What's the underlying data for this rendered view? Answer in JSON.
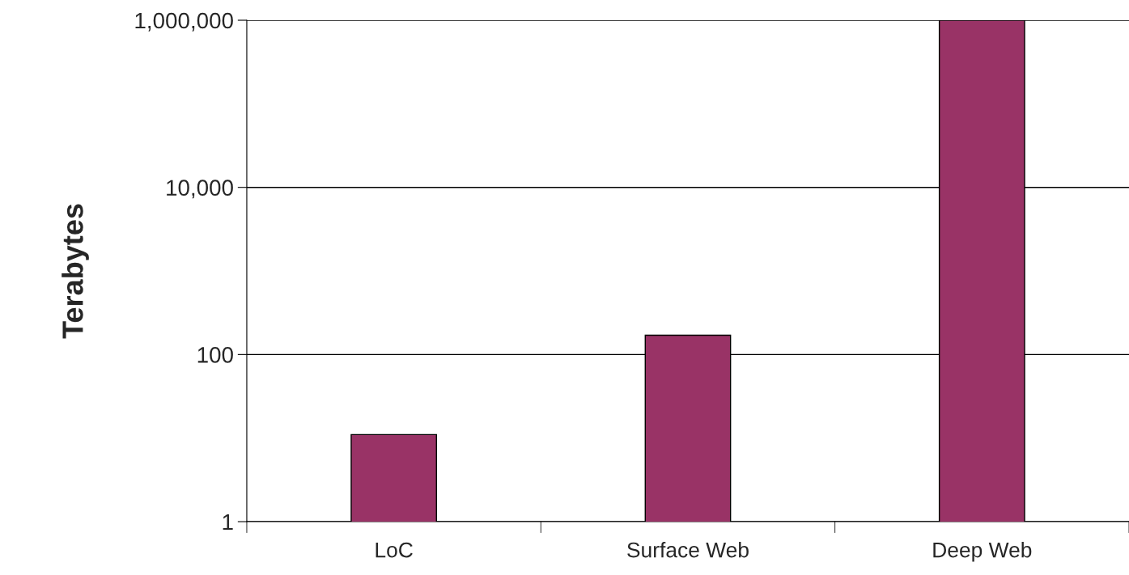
{
  "chart_data": {
    "type": "bar",
    "ylabel": "Terabytes",
    "categories": [
      "LoC",
      "Surface Web",
      "Deep Web"
    ],
    "series": [
      {
        "color": "#993366",
        "values": [
          11,
          170,
          1000000
        ]
      }
    ],
    "log": true,
    "ylim": [
      1,
      1000000
    ],
    "yticks": [
      {
        "value": 1,
        "label": "1"
      },
      {
        "value": 100,
        "label": "100"
      },
      {
        "value": 10000,
        "label": "10,000"
      },
      {
        "value": 1000000,
        "label": "1,000,000"
      }
    ],
    "grid": "y"
  }
}
